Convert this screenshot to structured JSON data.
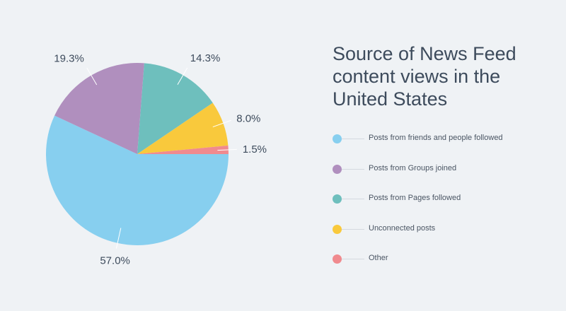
{
  "chart_data": {
    "type": "pie",
    "title": "Source of News Feed content views in the United States",
    "categories": [
      "Posts from friends and people followed",
      "Posts from Groups joined",
      "Posts from Pages followed",
      "Unconnected posts",
      "Other"
    ],
    "values": [
      57.0,
      19.3,
      14.3,
      8.0,
      1.5
    ],
    "value_labels": [
      "57.0%",
      "19.3%",
      "14.3%",
      "8.0%",
      "1.5%"
    ],
    "colors": [
      "#87cfef",
      "#b08fbe",
      "#6ebfbd",
      "#f9c93c",
      "#f08a8e"
    ],
    "legend_position": "right",
    "grid": false
  }
}
